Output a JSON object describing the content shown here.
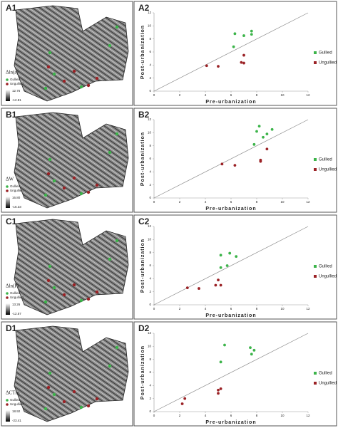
{
  "chart_data": [
    {
      "type": "scatter",
      "title": "A2",
      "xlabel": "Pre-urbanization",
      "ylabel": "Post-urbanization",
      "xlim": [
        0,
        12
      ],
      "ylim": [
        0,
        12
      ],
      "xticks": [
        0,
        2,
        4,
        6,
        8,
        10,
        12
      ],
      "yticks": [
        0,
        2,
        4,
        6,
        8,
        10,
        12
      ],
      "identity_line": true,
      "series": [
        {
          "name": "Gullied",
          "color": "#3cb44a",
          "x": [
            6.3,
            7.0,
            7.6,
            7.6,
            6.2
          ],
          "values": [
            8.8,
            8.5,
            9.2,
            8.7,
            6.8
          ]
        },
        {
          "name": "Ungullied",
          "color": "#9b2226",
          "x": [
            4.1,
            5.0,
            6.8,
            7.0,
            7.0
          ],
          "values": [
            3.9,
            3.8,
            4.4,
            4.3,
            5.5
          ]
        }
      ]
    },
    {
      "type": "scatter",
      "title": "B2",
      "xlabel": "Pre-urbanization",
      "ylabel": "Post-urbanization",
      "xlim": [
        0,
        12
      ],
      "ylim": [
        0,
        12
      ],
      "xticks": [
        0,
        2,
        4,
        6,
        8,
        10,
        12
      ],
      "yticks": [
        0,
        2,
        4,
        6,
        8,
        10,
        12
      ],
      "identity_line": true,
      "series": [
        {
          "name": "Gullied",
          "color": "#3cb44a",
          "x": [
            7.8,
            8.2,
            8.5,
            8.8,
            9.2,
            8.0
          ],
          "values": [
            8.2,
            11.0,
            9.3,
            9.8,
            10.5,
            10.2
          ]
        },
        {
          "name": "Ungullied",
          "color": "#9b2226",
          "x": [
            5.3,
            6.3,
            8.3,
            8.3,
            8.8
          ],
          "values": [
            5.2,
            5.0,
            5.8,
            5.6,
            7.5
          ]
        }
      ]
    },
    {
      "type": "scatter",
      "title": "C2",
      "xlabel": "Pre-urbanization",
      "ylabel": "Post-urbanization",
      "xlim": [
        0,
        12
      ],
      "ylim": [
        0,
        12
      ],
      "xticks": [
        0,
        2,
        4,
        6,
        8,
        10,
        12
      ],
      "yticks": [
        0,
        2,
        4,
        6,
        8,
        10,
        12
      ],
      "identity_line": true,
      "series": [
        {
          "name": "Gullied",
          "color": "#3cb44a",
          "x": [
            5.2,
            5.9,
            6.4,
            5.7,
            5.2
          ],
          "values": [
            7.6,
            7.9,
            7.4,
            6.0,
            5.7
          ]
        },
        {
          "name": "Ungullied",
          "color": "#9b2226",
          "x": [
            2.6,
            3.5,
            4.8,
            5.0,
            5.2
          ],
          "values": [
            2.6,
            2.5,
            3.0,
            3.8,
            3.0
          ]
        }
      ]
    },
    {
      "type": "scatter",
      "title": "D2",
      "xlabel": "Pre-urbanization",
      "ylabel": "Post-urbanization",
      "xlim": [
        0,
        12
      ],
      "ylim": [
        0,
        12
      ],
      "xticks": [
        0,
        2,
        4,
        6,
        8,
        10,
        12
      ],
      "yticks": [
        0,
        2,
        4,
        6,
        8,
        10,
        12
      ],
      "identity_line": true,
      "series": [
        {
          "name": "Gullied",
          "color": "#3cb44a",
          "x": [
            5.2,
            5.5,
            7.5,
            7.8,
            7.6
          ],
          "values": [
            7.6,
            10.2,
            9.8,
            9.4,
            8.8
          ]
        },
        {
          "name": "Ungullied",
          "color": "#9b2226",
          "x": [
            2.2,
            2.4,
            5.0,
            5.2,
            5.0
          ],
          "values": [
            1.2,
            2.0,
            3.3,
            3.5,
            2.8
          ]
        }
      ]
    }
  ],
  "maps": [
    {
      "label": "A1",
      "variable": "Δln(a)",
      "legend": [
        "Gullied",
        "Ungullied"
      ],
      "scale_max": "12.76",
      "scale_min": "-12.81"
    },
    {
      "label": "B1",
      "variable": "ΔW",
      "legend": [
        "Gullied",
        "Ungullied"
      ],
      "scale_max": "16.80",
      "scale_min": "-16.33"
    },
    {
      "label": "C1",
      "variable": "Δln(P)",
      "legend": [
        "Gullied",
        "Ungullied"
      ],
      "scale_max": "13.26",
      "scale_min": "-12.57"
    },
    {
      "label": "D1",
      "variable": "ΔCTIn",
      "legend": [
        "Gullied",
        "Ungullied"
      ],
      "scale_max": "18.92",
      "scale_min": "-23.41"
    }
  ]
}
